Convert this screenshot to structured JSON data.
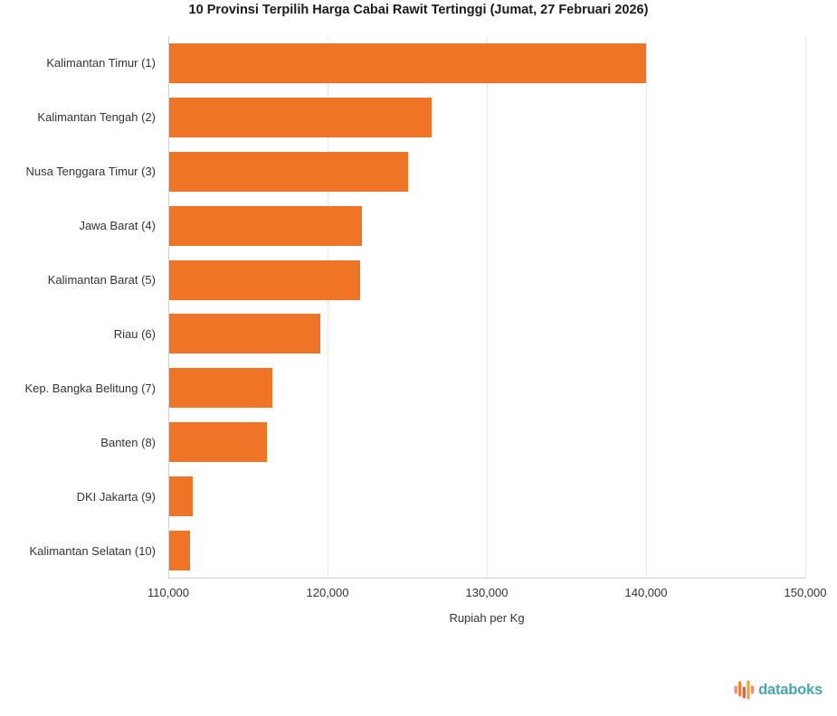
{
  "chart_data": {
    "type": "bar",
    "orientation": "horizontal",
    "title": "10 Provinsi Terpilih Harga Cabai Rawit Tertinggi (Jumat, 27 Februari 2026)",
    "categories": [
      "Kalimantan Timur (1)",
      "Kalimantan Tengah (2)",
      "Nusa Tenggara Timur (3)",
      "Jawa Barat (4)",
      "Kalimantan Barat (5)",
      "Riau (6)",
      "Kep. Bangka Belitung (7)",
      "Banten (8)",
      "DKI Jakarta (9)",
      "Kalimantan Selatan (10)"
    ],
    "values": [
      139950,
      126500,
      125000,
      122100,
      122000,
      119500,
      116500,
      116150,
      111500,
      111300
    ],
    "xlabel": "Rupiah per Kg",
    "ylabel": "",
    "xlim": [
      110000,
      150000
    ],
    "xticks": [
      110000,
      120000,
      130000,
      140000,
      150000
    ],
    "xtick_labels": [
      "110,000",
      "120,000",
      "130,000",
      "140,000",
      "150,000"
    ],
    "grid": true,
    "legend": "none",
    "bar_color": "#ef7426",
    "gridline_color": "#e6e6e6",
    "axis_line_color": "#cfcfcf",
    "label_color": "#333333",
    "title_color": "#1a1a1a"
  },
  "footer": {
    "brand": "databoks",
    "brand_color": "#4aa7a8",
    "logo_bars": [
      {
        "height": 9,
        "dy": 0,
        "color": "#ee8d77"
      },
      {
        "height": 17,
        "dy": -1,
        "color": "#f0802f"
      },
      {
        "height": 13,
        "dy": 3,
        "color": "#dd5f4b"
      },
      {
        "height": 21,
        "dy": 0,
        "color": "#f2a33c"
      },
      {
        "height": 9,
        "dy": 0,
        "color": "#ee8d77"
      }
    ]
  }
}
